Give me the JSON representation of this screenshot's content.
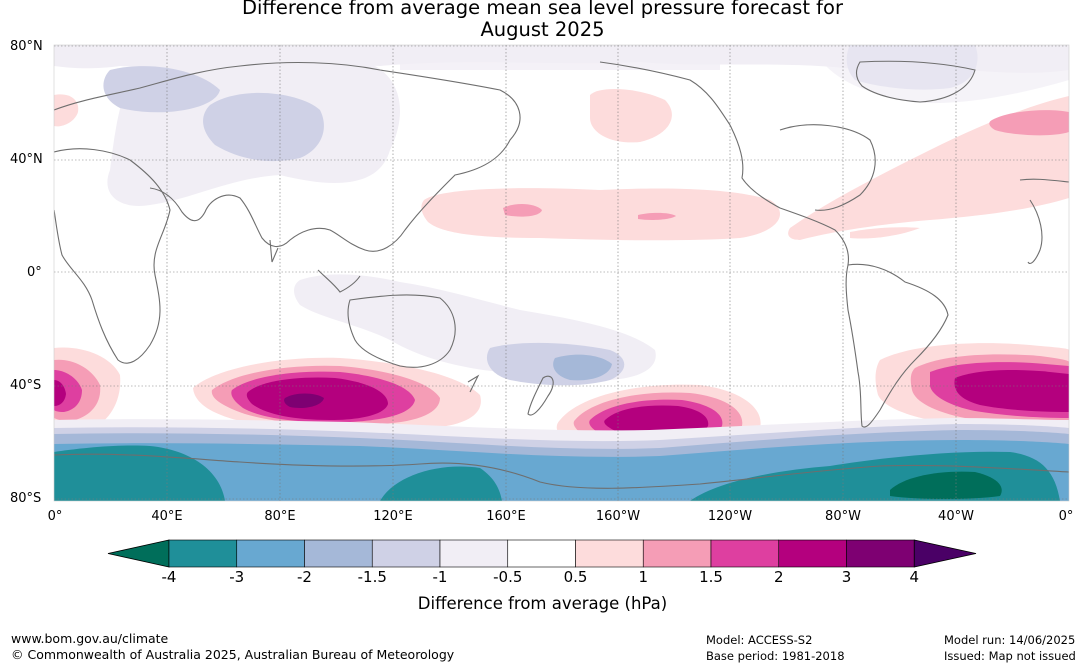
{
  "title_line1": "Difference from average mean sea level pressure forecast for",
  "title_line2": "August 2025",
  "lat_labels": [
    "80°N",
    "40°N",
    "0°",
    "40°S",
    "80°S"
  ],
  "lon_labels": [
    "0°",
    "40°E",
    "80°E",
    "120°E",
    "160°E",
    "160°W",
    "120°W",
    "80°W",
    "40°W",
    "0°"
  ],
  "colorbar": {
    "ticks": [
      "-4",
      "-3",
      "-2",
      "-1.5",
      "-1",
      "-0.5",
      "0.5",
      "1",
      "1.5",
      "2",
      "3",
      "4"
    ],
    "colors": [
      "#006e5a",
      "#1f8f99",
      "#68a8d1",
      "#a5b8d8",
      "#cfd1e6",
      "#f1eef5",
      "#ffffff",
      "#fddcdc",
      "#f59db6",
      "#de3fa0",
      "#b4007e",
      "#7e0072",
      "#4a0066"
    ],
    "label": "Difference from average (hPa)"
  },
  "footer": {
    "url": "www.bom.gov.au/climate",
    "copyright": "© Commonwealth of Australia 2025, Australian Bureau of Meteorology",
    "model": "Model: ACCESS-S2",
    "base_period": "Base period: 1981-2018",
    "model_run": "Model run: 14/06/2025",
    "issued": "Issued: Map not issued"
  }
}
